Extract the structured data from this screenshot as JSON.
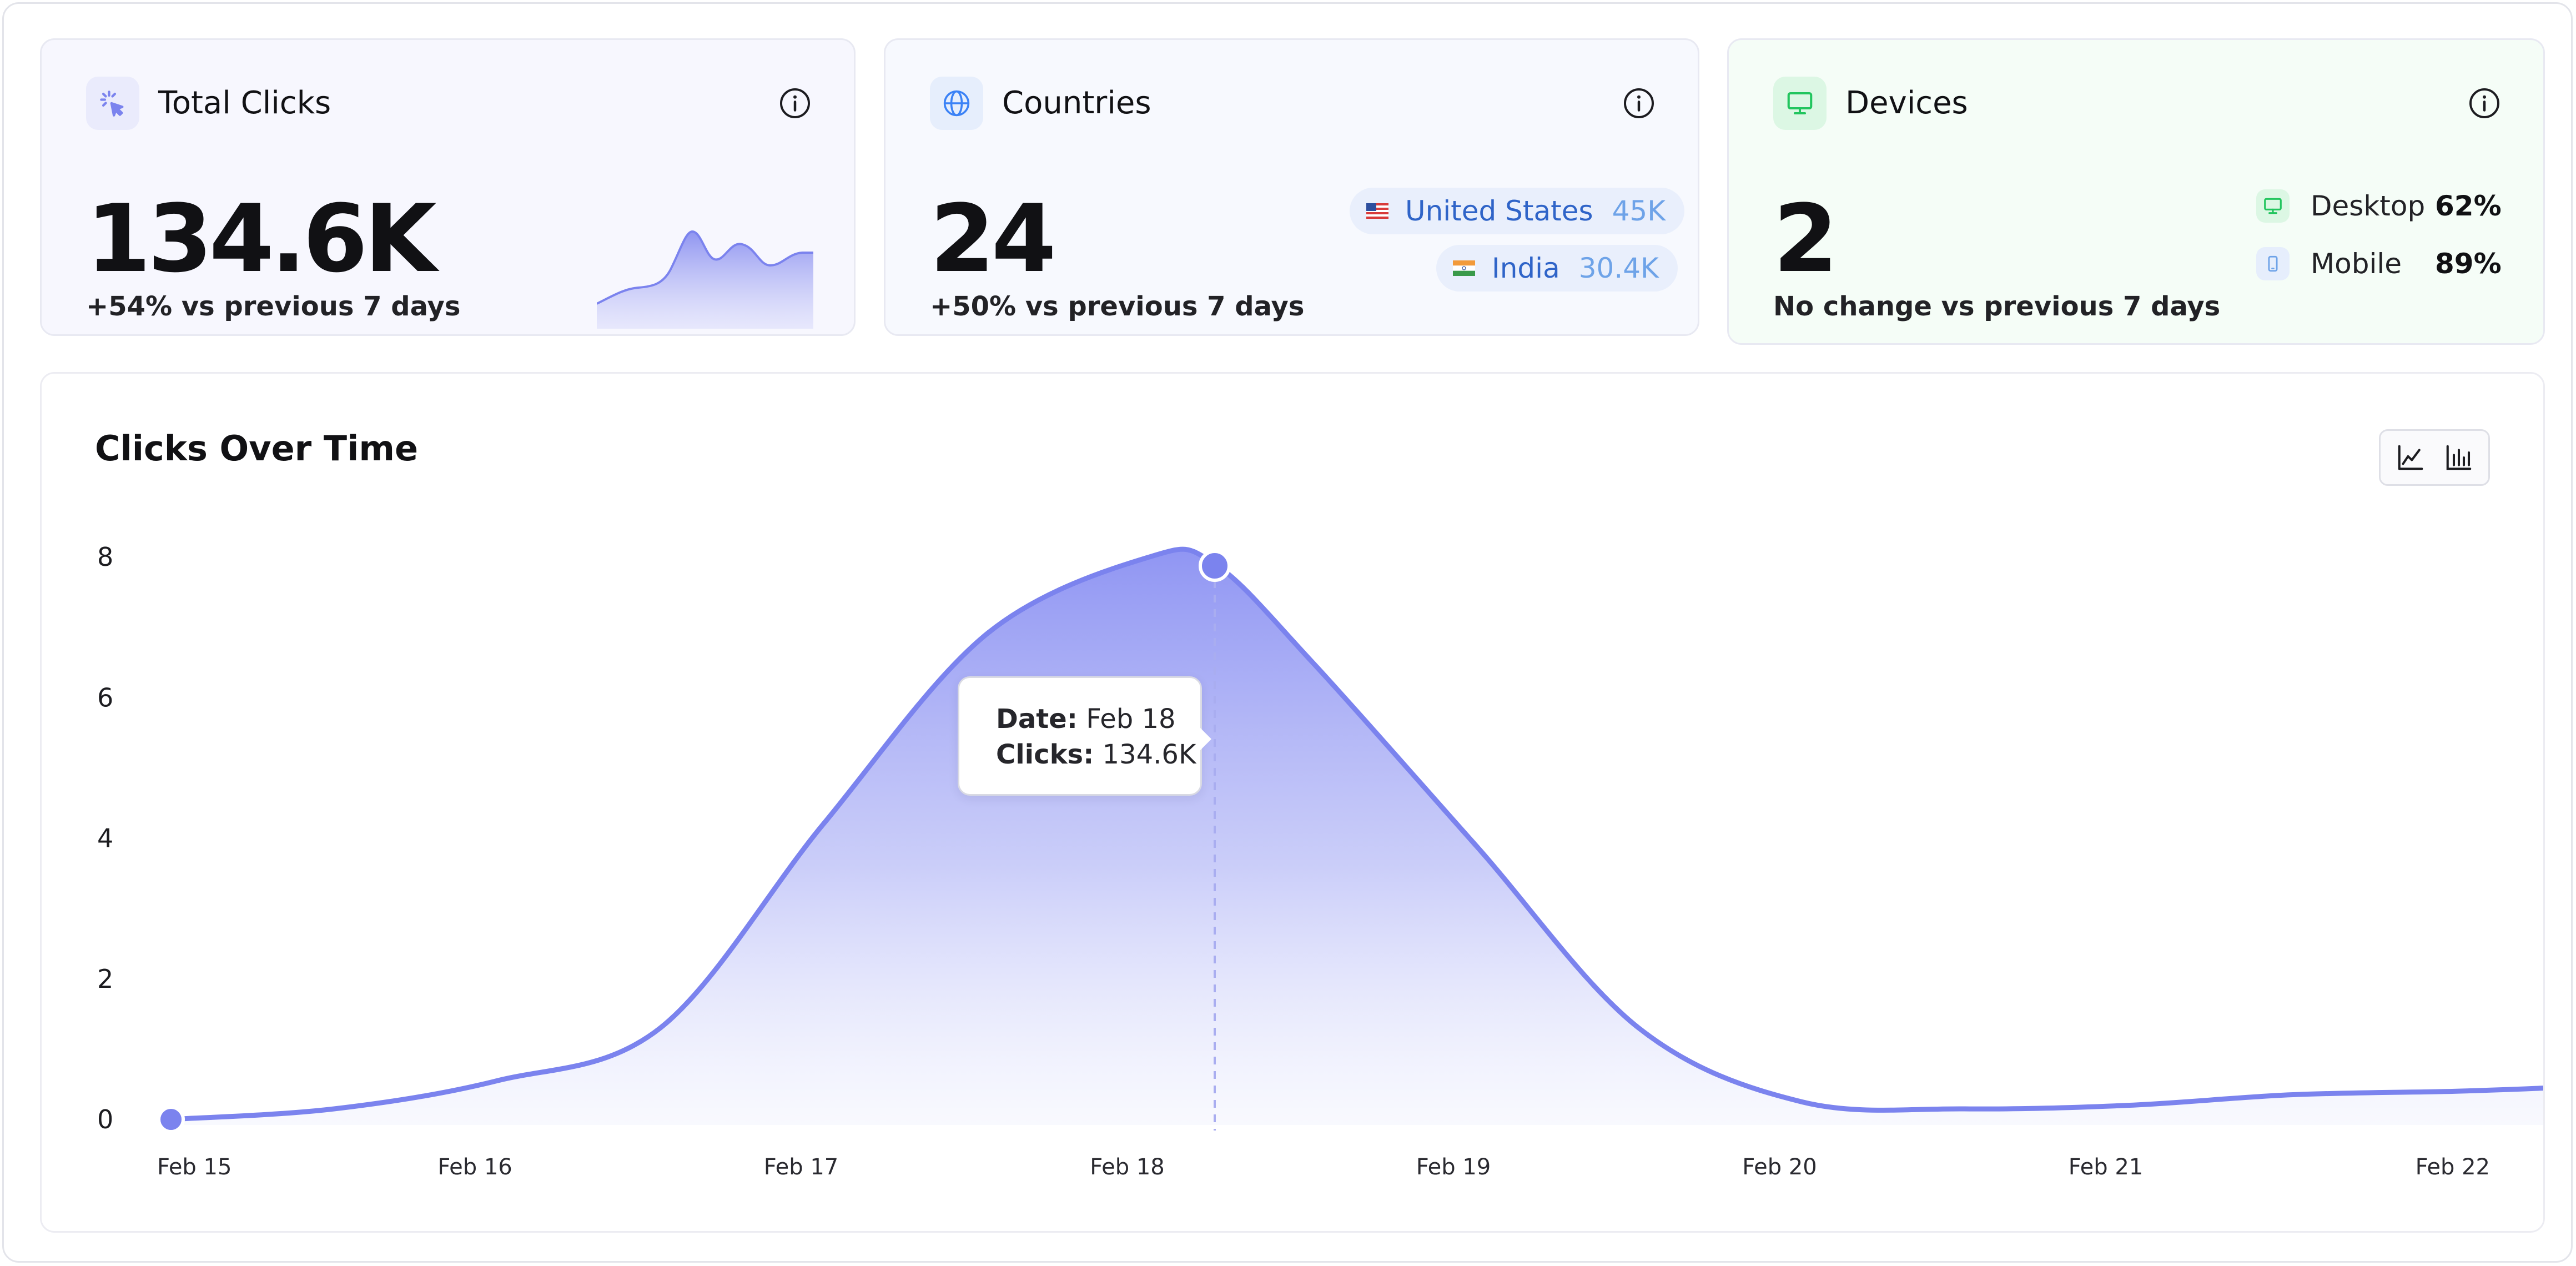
{
  "cards": {
    "clicks": {
      "title": "Total Clicks",
      "value": "134.6K",
      "change": "+54% vs previous 7 days"
    },
    "countries": {
      "title": "Countries",
      "value": "24",
      "change": "+50% vs previous 7 days",
      "items": [
        {
          "name": "United States",
          "value": "45K"
        },
        {
          "name": "India",
          "value": "30.4K"
        }
      ]
    },
    "devices": {
      "title": "Devices",
      "value": "2",
      "change": "No change vs previous 7 days",
      "items": [
        {
          "name": "Desktop",
          "value": "62%"
        },
        {
          "name": "Mobile",
          "value": "89%"
        }
      ]
    }
  },
  "chart": {
    "title": "Clicks Over Time",
    "tooltip": {
      "date_label": "Date:",
      "date_value": "Feb 18",
      "clicks_label": "Clicks:",
      "clicks_value": "134.6K"
    }
  },
  "colors": {
    "accent": "#7b83ee",
    "blue": "#2f64c8",
    "green": "#22c55e"
  },
  "chart_data": {
    "type": "area",
    "title": "Clicks Over Time",
    "categories": [
      "Feb 15",
      "Feb 16",
      "Feb 17",
      "Feb 18",
      "Feb 19",
      "Feb 20",
      "Feb 21",
      "Feb 22"
    ],
    "x": [
      "Feb 15",
      "Feb 15",
      "Feb 16",
      "Feb 16",
      "Feb 17",
      "Feb 17",
      "Feb 18",
      "Feb 18",
      "Feb 19",
      "Feb 19",
      "Feb 20",
      "Feb 20",
      "Feb 21",
      "Feb 21",
      "Feb 22",
      "Feb 22"
    ],
    "xlabel": "",
    "ylabel": "",
    "yticks": [
      "0",
      "2",
      "4",
      "6",
      "8"
    ],
    "ylim": [
      0,
      8
    ],
    "points": [
      {
        "x": 0.0,
        "y": 0.0
      },
      {
        "x": 0.5,
        "y": 0.15
      },
      {
        "x": 1.0,
        "y": 0.55
      },
      {
        "x": 1.5,
        "y": 1.3
      },
      {
        "x": 2.0,
        "y": 4.2
      },
      {
        "x": 2.5,
        "y": 6.9
      },
      {
        "x": 3.0,
        "y": 8.0
      },
      {
        "x": 3.2,
        "y": 7.9
      },
      {
        "x": 3.5,
        "y": 6.5
      },
      {
        "x": 4.0,
        "y": 3.9
      },
      {
        "x": 4.5,
        "y": 1.3
      },
      {
        "x": 5.0,
        "y": 0.25
      },
      {
        "x": 5.5,
        "y": 0.15
      },
      {
        "x": 6.0,
        "y": 0.2
      },
      {
        "x": 6.5,
        "y": 0.35
      },
      {
        "x": 7.0,
        "y": 0.4
      },
      {
        "x": 7.3,
        "y": 0.45
      }
    ],
    "highlight": {
      "x": "Feb 18",
      "y": 8.0
    },
    "grid": false,
    "legend": "none"
  }
}
